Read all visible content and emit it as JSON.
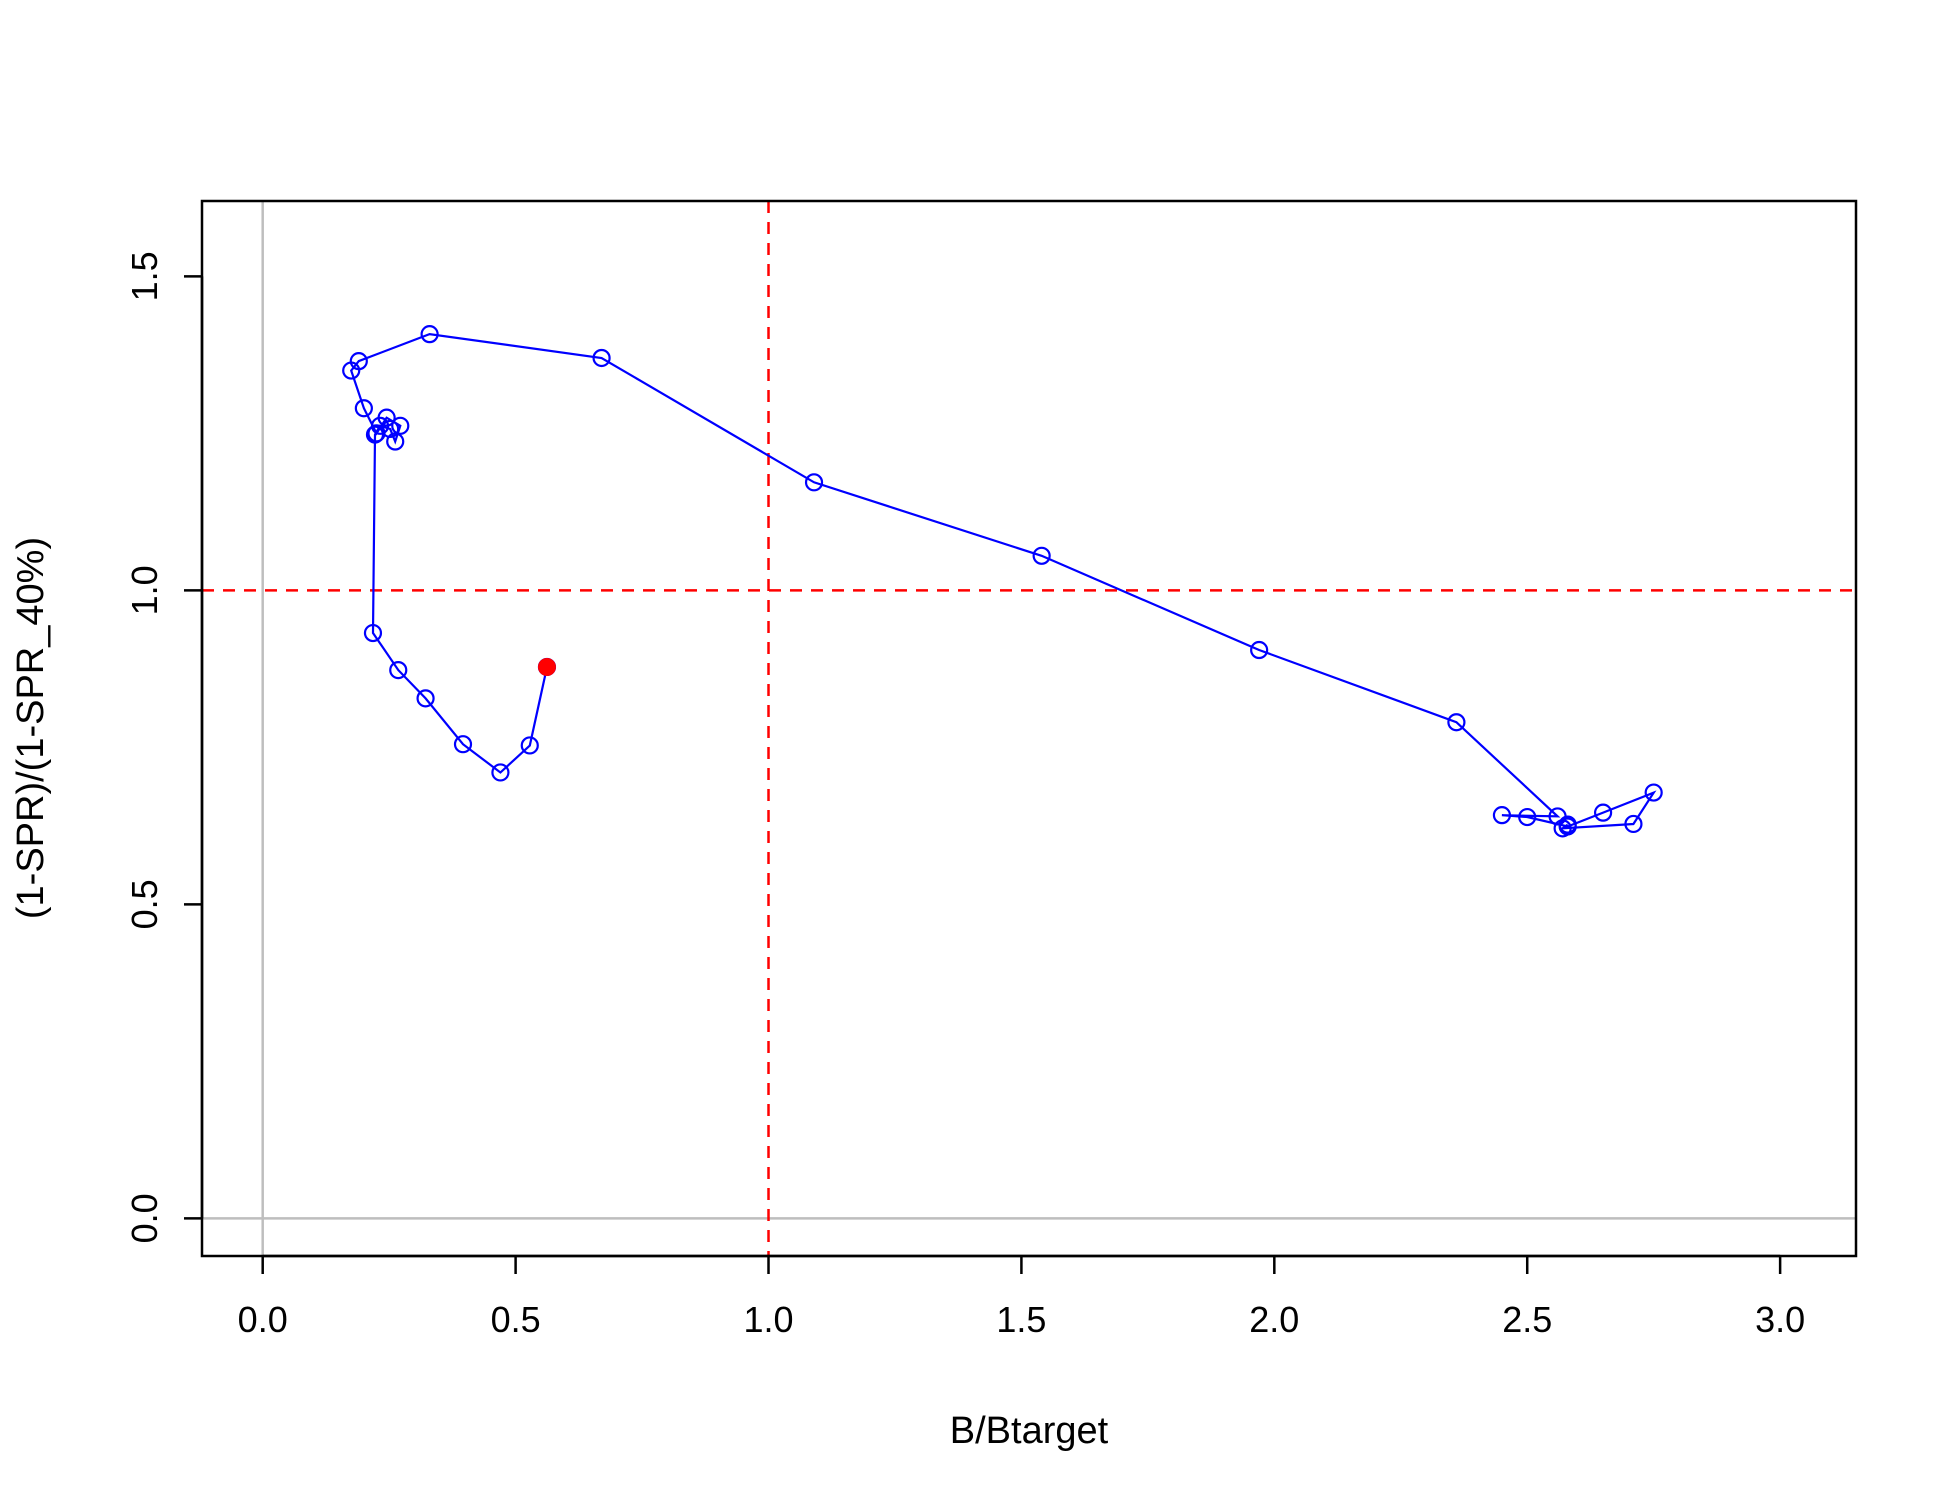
{
  "chart_data": {
    "type": "scatter",
    "title": "",
    "xlabel": "B/Btarget",
    "ylabel": "(1-SPR)/(1-SPR_40%)",
    "xlim": [
      -0.12,
      3.15
    ],
    "ylim": [
      -0.06,
      1.62
    ],
    "x_ticks": [
      "0.0",
      "0.5",
      "1.0",
      "1.5",
      "2.0",
      "2.5",
      "3.0"
    ],
    "x_tick_values": [
      0,
      0.5,
      1,
      1.5,
      2,
      2.5,
      3
    ],
    "y_ticks": [
      "0.0",
      "0.5",
      "1.0",
      "1.5"
    ],
    "y_tick_values": [
      0,
      0.5,
      1,
      1.5
    ],
    "grid": false,
    "reference_lines": {
      "target_color": "#ff0000",
      "target_x": 1.0,
      "target_y": 1.0,
      "zero_color": "#bebebe",
      "zero_x": 0.0,
      "zero_y": 0.0
    },
    "series": [
      {
        "color": "#0000ff",
        "marker": "open-circle",
        "x": [
          2.58,
          2.57,
          2.71,
          2.75,
          2.65,
          2.58,
          2.5,
          2.45,
          2.56,
          2.36,
          1.97,
          1.54,
          1.09,
          0.67,
          0.33,
          0.19,
          0.175,
          0.2,
          0.225,
          0.245,
          0.272,
          0.262,
          0.252,
          0.232,
          0.222,
          0.218,
          0.268,
          0.322,
          0.396,
          0.47,
          0.528,
          0.562
        ],
        "y": [
          0.627,
          0.621,
          0.628,
          0.678,
          0.646,
          0.624,
          0.639,
          0.642,
          0.64,
          0.79,
          0.905,
          1.055,
          1.172,
          1.37,
          1.408,
          1.365,
          1.35,
          1.29,
          1.25,
          1.275,
          1.262,
          1.237,
          1.257,
          1.262,
          1.248,
          0.932,
          0.873,
          0.828,
          0.755,
          0.71,
          0.753,
          0.878
        ]
      }
    ],
    "last_point": {
      "x": 0.562,
      "y": 0.878,
      "color": "#ff0000",
      "marker": "filled-circle"
    }
  }
}
